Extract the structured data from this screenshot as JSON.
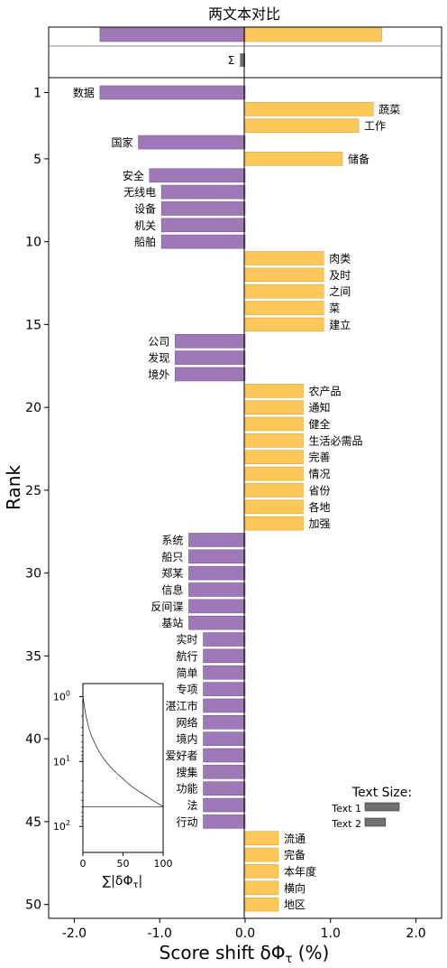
{
  "chart_data": {
    "type": "bar",
    "title": "两文本对比",
    "xlabel": "Score shift δΦ",
    "xlabel_sub": "τ",
    "xlabel_unit": " (%)",
    "ylabel": "Rank",
    "xlim": [
      -2.3,
      2.3
    ],
    "xticks": [
      -2.0,
      -1.0,
      0.0,
      1.0,
      2.0
    ],
    "xtick_labels": [
      "-2.0",
      "-1.0",
      "0.0",
      "1.0",
      "2.0"
    ],
    "yticks": [
      1,
      5,
      10,
      15,
      20,
      25,
      30,
      35,
      40,
      45,
      50
    ],
    "colors": {
      "text1": "#9f78b8",
      "text2": "#fdc85a",
      "sum": "#707070"
    },
    "summary": {
      "text1_total": -1.7,
      "text2_total": 1.6,
      "sigma_label": "Σ",
      "sigma_value": -0.06
    },
    "words": [
      {
        "rank": 1,
        "label": "数据",
        "value": -1.7
      },
      {
        "rank": 2,
        "label": "蔬菜",
        "value": 1.5
      },
      {
        "rank": 3,
        "label": "工作",
        "value": 1.33
      },
      {
        "rank": 4,
        "label": "国家",
        "value": -1.25
      },
      {
        "rank": 5,
        "label": "储备",
        "value": 1.14
      },
      {
        "rank": 6,
        "label": "安全",
        "value": -1.12
      },
      {
        "rank": 7,
        "label": "无线电",
        "value": -0.98
      },
      {
        "rank": 8,
        "label": "设备",
        "value": -0.98
      },
      {
        "rank": 9,
        "label": "机关",
        "value": -0.98
      },
      {
        "rank": 10,
        "label": "船舶",
        "value": -0.98
      },
      {
        "rank": 11,
        "label": "肉类",
        "value": 0.92
      },
      {
        "rank": 12,
        "label": "及时",
        "value": 0.92
      },
      {
        "rank": 13,
        "label": "之间",
        "value": 0.92
      },
      {
        "rank": 14,
        "label": "菜",
        "value": 0.92
      },
      {
        "rank": 15,
        "label": "建立",
        "value": 0.92
      },
      {
        "rank": 16,
        "label": "公司",
        "value": -0.82
      },
      {
        "rank": 17,
        "label": "发现",
        "value": -0.82
      },
      {
        "rank": 18,
        "label": "境外",
        "value": -0.82
      },
      {
        "rank": 19,
        "label": "农产品",
        "value": 0.68
      },
      {
        "rank": 20,
        "label": "通知",
        "value": 0.68
      },
      {
        "rank": 21,
        "label": "健全",
        "value": 0.68
      },
      {
        "rank": 22,
        "label": "生活必需品",
        "value": 0.68
      },
      {
        "rank": 23,
        "label": "完善",
        "value": 0.68
      },
      {
        "rank": 24,
        "label": "情况",
        "value": 0.68
      },
      {
        "rank": 25,
        "label": "省份",
        "value": 0.68
      },
      {
        "rank": 26,
        "label": "各地",
        "value": 0.68
      },
      {
        "rank": 27,
        "label": "加强",
        "value": 0.68
      },
      {
        "rank": 28,
        "label": "系统",
        "value": -0.66
      },
      {
        "rank": 29,
        "label": "船只",
        "value": -0.66
      },
      {
        "rank": 30,
        "label": "郑某",
        "value": -0.66
      },
      {
        "rank": 31,
        "label": "信息",
        "value": -0.66
      },
      {
        "rank": 32,
        "label": "反间谍",
        "value": -0.66
      },
      {
        "rank": 33,
        "label": "基站",
        "value": -0.66
      },
      {
        "rank": 34,
        "label": "实时",
        "value": -0.49
      },
      {
        "rank": 35,
        "label": "航行",
        "value": -0.49
      },
      {
        "rank": 36,
        "label": "简单",
        "value": -0.49
      },
      {
        "rank": 37,
        "label": "专项",
        "value": -0.49
      },
      {
        "rank": 38,
        "label": "湛江市",
        "value": -0.49
      },
      {
        "rank": 39,
        "label": "网络",
        "value": -0.49
      },
      {
        "rank": 40,
        "label": "境内",
        "value": -0.49
      },
      {
        "rank": 41,
        "label": "爱好者",
        "value": -0.49
      },
      {
        "rank": 42,
        "label": "搜集",
        "value": -0.49
      },
      {
        "rank": 43,
        "label": "功能",
        "value": -0.49
      },
      {
        "rank": 44,
        "label": "法",
        "value": -0.49
      },
      {
        "rank": 45,
        "label": "行动",
        "value": -0.49
      },
      {
        "rank": 46,
        "label": "流通",
        "value": 0.39
      },
      {
        "rank": 47,
        "label": "完备",
        "value": 0.39
      },
      {
        "rank": 48,
        "label": "本年度",
        "value": 0.39
      },
      {
        "rank": 49,
        "label": "横向",
        "value": 0.39
      },
      {
        "rank": 50,
        "label": "地区",
        "value": 0.39
      }
    ],
    "inset": {
      "xlabel": "∑|δΦ",
      "xlabel_sub": "τ",
      "xlabel_end": "|",
      "xticks": [
        0,
        50,
        100
      ],
      "xtick_labels": [
        "0",
        "50",
        "100"
      ],
      "ytick_labels": [
        "10",
        "10",
        "10"
      ],
      "ytick_exps": [
        "0",
        "1",
        "2"
      ],
      "line_cumulative_percent": [
        0,
        3.8,
        7.2,
        10.6,
        14,
        17.2,
        20.1,
        22.9,
        25.7,
        28.5,
        31.3,
        33.9,
        36.5,
        39.1,
        41.7,
        44.3,
        46.6,
        48.9,
        51.2,
        53.1,
        55,
        56.9,
        58.8,
        60.7,
        62.6,
        64.5,
        66.4,
        68.3,
        70.2,
        72,
        73.8,
        75.6,
        77.4,
        79.2,
        80.6,
        82,
        83.4,
        84.8,
        86.2,
        87.6,
        89,
        90.4,
        91.8,
        93.2,
        94.6,
        96,
        97.1,
        98.2,
        99.3,
        100
      ],
      "hline_rank": 50
    },
    "legend": {
      "title": "Text Size:",
      "entries": [
        {
          "label": "Text 1",
          "relative_size": 1.0
        },
        {
          "label": "Text 2",
          "relative_size": 0.6
        }
      ]
    }
  }
}
